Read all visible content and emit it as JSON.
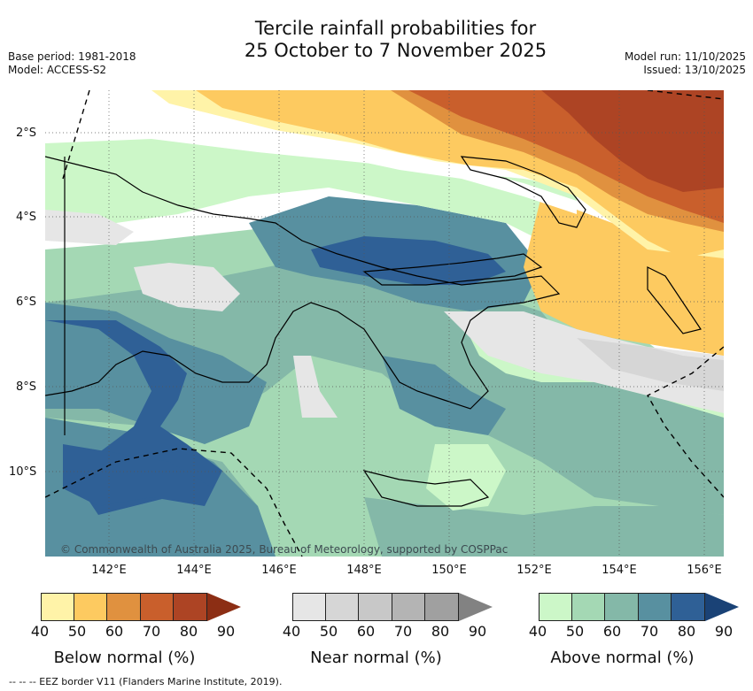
{
  "title": {
    "line1": "Tercile rainfall probabilities for",
    "line2": "25 October to 7 November 2025"
  },
  "meta": {
    "base_period": "Base period: 1981-2018",
    "model": "Model: ACCESS-S2",
    "model_run": "Model run: 11/10/2025",
    "issued": "Issued: 13/10/2025"
  },
  "axes": {
    "lat_labels": [
      "2°S",
      "4°S",
      "6°S",
      "8°S",
      "10°S"
    ],
    "lon_labels": [
      "142°E",
      "144°E",
      "146°E",
      "148°E",
      "150°E",
      "152°E",
      "154°E",
      "156°E"
    ]
  },
  "copyright": "© Commonwealth of Australia 2025, Bureau of Meteorology, supported by COSPPac",
  "legends": [
    {
      "title": "Below normal (%)",
      "ticks": [
        "40",
        "50",
        "60",
        "70",
        "80",
        "90"
      ],
      "colors": [
        "#fff3a8",
        "#fdca60",
        "#e0913f",
        "#c95f2c",
        "#ad4424",
        "#8c2e14"
      ]
    },
    {
      "title": "Near normal (%)",
      "ticks": [
        "40",
        "50",
        "60",
        "70",
        "80",
        "90"
      ],
      "colors": [
        "#e6e6e6",
        "#d6d6d6",
        "#c8c8c8",
        "#b4b4b4",
        "#a0a0a0",
        "#828282"
      ]
    },
    {
      "title": "Above normal (%)",
      "ticks": [
        "40",
        "50",
        "60",
        "70",
        "80",
        "90"
      ],
      "colors": [
        "#ccf7c8",
        "#a4d8b4",
        "#84b8a8",
        "#5890a0",
        "#2f6096",
        "#1a4276"
      ]
    }
  ],
  "footnote": "--  --  -- EEZ border V11 (Flanders Marine Institute, 2019)."
}
